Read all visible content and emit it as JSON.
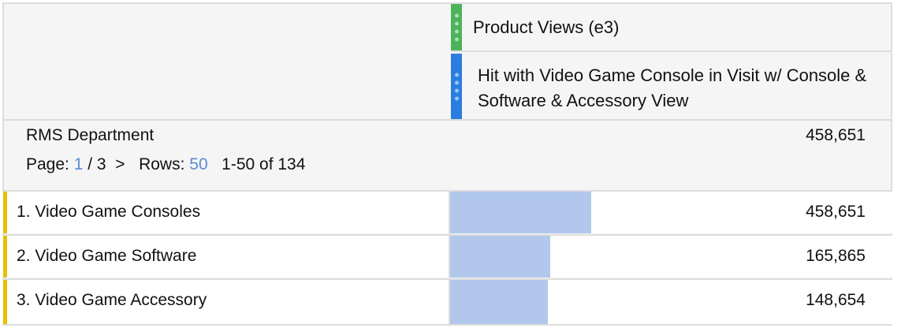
{
  "metrics": [
    {
      "label": "Product Views (e3)",
      "color": "#4cb35a"
    },
    {
      "label": "Hit with Video Game Console in Visit w/ Console & Software & Accessory View",
      "color": "#2b7de0"
    }
  ],
  "dimension": {
    "title": "RMS Department",
    "total": "458,651"
  },
  "pager": {
    "page_label": "Page:",
    "page": "1",
    "of_pages": "/ 3",
    "next": ">",
    "rows_label": "Rows:",
    "rows": "50",
    "range": "1-50 of 134"
  },
  "rows": [
    {
      "label": "1. Video Game Consoles",
      "value": "458,651",
      "num": 458651
    },
    {
      "label": "2. Video Game Software",
      "value": "165,865",
      "num": 165865
    },
    {
      "label": "3. Video Game Accessory",
      "value": "148,654",
      "num": 148654
    }
  ],
  "colors": {
    "bar": "#b1c7ec",
    "row_flag": "#e5c000",
    "link": "#5b8bd9"
  }
}
